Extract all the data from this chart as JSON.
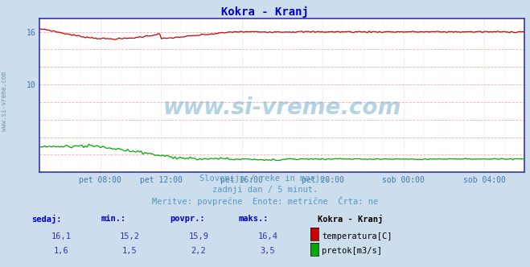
{
  "title": "Kokra - Kranj",
  "title_color": "#0000cc",
  "bg_color": "#ccdded",
  "plot_bg_color": "#ffffff",
  "grid_color_h": "#ffaaaa",
  "grid_color_v": "#dddddd",
  "xticklabels": [
    "pet 08:00",
    "pet 12:00",
    "pet 16:00",
    "pet 20:00",
    "sob 00:00",
    "sob 04:00"
  ],
  "ylim_min": 0,
  "ylim_max": 17.5,
  "ytick_positions": [
    2,
    4,
    6,
    8,
    10,
    12,
    14,
    16
  ],
  "ytick_labels": [
    "",
    "",
    "",
    "",
    "10",
    "",
    "",
    "16"
  ],
  "ylabel_color": "#4477aa",
  "temp_color": "#cc0000",
  "flow_color": "#00aa00",
  "axis_border_color": "#3333bb",
  "watermark_text": "www.si-vreme.com",
  "watermark_color": "#4488bb",
  "subtitle1": "Slovenija / reke in morje.",
  "subtitle2": "zadnji dan / 5 minut.",
  "subtitle3": "Meritve: povprečne  Enote: metrične  Črta: ne",
  "subtitle_color": "#5599bb",
  "legend_title": "Kokra - Kranj",
  "table_header_color": "#0000cc",
  "table_value_color": "#3333aa",
  "sedaj_label": "sedaj:",
  "min_label": "min.:",
  "povpr_label": "povpr.:",
  "maks_label": "maks.:",
  "temp_sedaj": "16,1",
  "temp_min": "15,2",
  "temp_povpr": "15,9",
  "temp_maks": "16,4",
  "flow_sedaj": "1,6",
  "flow_min": "1,5",
  "flow_povpr": "2,2",
  "flow_maks": "3,5",
  "temp_label": "temperatura[C]",
  "flow_label": "pretok[m3/s]",
  "n_points": 288,
  "left_label": "www.si-vreme.com",
  "left_label_color": "#7799aa"
}
